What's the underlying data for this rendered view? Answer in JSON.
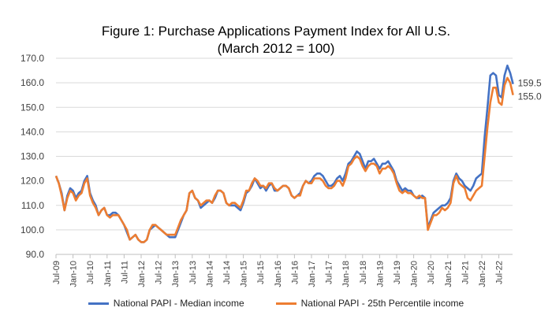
{
  "chart_data": {
    "type": "line",
    "title": "Figure 1: Purchase Applications Payment Index for All U.S.",
    "subtitle": "(March 2012 = 100)",
    "xlabel": "",
    "ylabel": "",
    "ylim": [
      90,
      170
    ],
    "yticks": [
      "90.0",
      "100.0",
      "110.0",
      "120.0",
      "130.0",
      "140.0",
      "150.0",
      "160.0",
      "170.0"
    ],
    "grid": true,
    "legend": "bottom",
    "start": "Jul-09",
    "frequency": "monthly",
    "xticks": [
      "Jul-09",
      "Jan-10",
      "Jul-10",
      "Jan-11",
      "Jul-11",
      "Jan-12",
      "Jul-12",
      "Jan-13",
      "Jul-13",
      "Jan-14",
      "Jul-14",
      "Jan-15",
      "Jul-15",
      "Jan-16",
      "Jul-16",
      "Jan-17",
      "Jul-17",
      "Jan-18",
      "Jul-18",
      "Jan-19",
      "Jul-19",
      "Jan-20",
      "Jul-20",
      "Jan-21",
      "Jul-21",
      "Jan-22",
      "Jul-22"
    ],
    "series": [
      {
        "name": "National PAPI - Median income",
        "color": "#4472C4",
        "end_label": "159.5",
        "values": [
          122,
          119,
          115,
          108,
          114,
          117,
          116,
          113,
          115,
          116,
          120,
          122,
          115,
          112,
          110,
          106,
          108,
          109,
          106,
          106,
          107,
          107,
          106,
          104,
          102,
          99,
          96,
          97,
          98,
          96,
          95,
          95,
          96,
          100,
          101,
          102,
          101,
          100,
          99,
          98,
          97,
          97,
          97,
          100,
          103,
          106,
          108,
          115,
          116,
          113,
          112,
          109,
          110,
          111,
          112,
          111,
          113,
          116,
          116,
          115,
          111,
          110,
          110,
          110,
          109,
          108,
          111,
          115,
          116,
          118,
          121,
          119,
          117,
          118,
          116,
          118,
          119,
          116,
          116,
          117,
          118,
          118,
          117,
          114,
          113,
          114,
          115,
          118,
          120,
          119,
          120,
          122,
          123,
          123,
          122,
          120,
          118,
          118,
          119,
          121,
          122,
          120,
          123,
          127,
          128,
          130,
          132,
          131,
          128,
          125,
          128,
          128,
          129,
          127,
          125,
          127,
          127,
          128,
          126,
          124,
          120,
          118,
          116,
          117,
          116,
          116,
          114,
          113,
          113,
          114,
          113,
          101,
          104,
          107,
          108,
          109,
          110,
          110,
          111,
          113,
          120,
          123,
          121,
          120,
          118,
          117,
          116,
          118,
          121,
          122,
          123,
          138,
          150,
          163,
          164,
          163,
          155,
          154,
          163,
          167,
          164,
          159.5
        ]
      },
      {
        "name": "National PAPI - 25th Percentile income",
        "color": "#ED7D31",
        "end_label": "155.0",
        "values": [
          122,
          119,
          114,
          108,
          113,
          116,
          115,
          112,
          114,
          115,
          119,
          121,
          114,
          111,
          109,
          106,
          108,
          109,
          106,
          105,
          106,
          106,
          106,
          104,
          102,
          100,
          96,
          97,
          98,
          96,
          95,
          95,
          96,
          100,
          102,
          102,
          101,
          100,
          99,
          98,
          98,
          98,
          98,
          101,
          104,
          106,
          108,
          115,
          116,
          113,
          112,
          110,
          111,
          112,
          112,
          111,
          114,
          116,
          116,
          115,
          111,
          110,
          111,
          111,
          110,
          109,
          112,
          116,
          116,
          119,
          121,
          120,
          118,
          118,
          117,
          119,
          119,
          117,
          116,
          117,
          118,
          118,
          117,
          114,
          113,
          114,
          114,
          118,
          120,
          119,
          119,
          121,
          121,
          121,
          120,
          118,
          117,
          117,
          118,
          120,
          120,
          118,
          121,
          126,
          127,
          129,
          130,
          129,
          126,
          124,
          126,
          127,
          127,
          126,
          123,
          125,
          125,
          126,
          125,
          123,
          119,
          116,
          115,
          116,
          115,
          115,
          114,
          113,
          114,
          113,
          113,
          100,
          103,
          106,
          106,
          107,
          109,
          108,
          109,
          111,
          119,
          122,
          119,
          118,
          117,
          113,
          112,
          114,
          116,
          117,
          118,
          130,
          142,
          152,
          158,
          158,
          152,
          151,
          159,
          162,
          160,
          155
        ]
      }
    ]
  }
}
